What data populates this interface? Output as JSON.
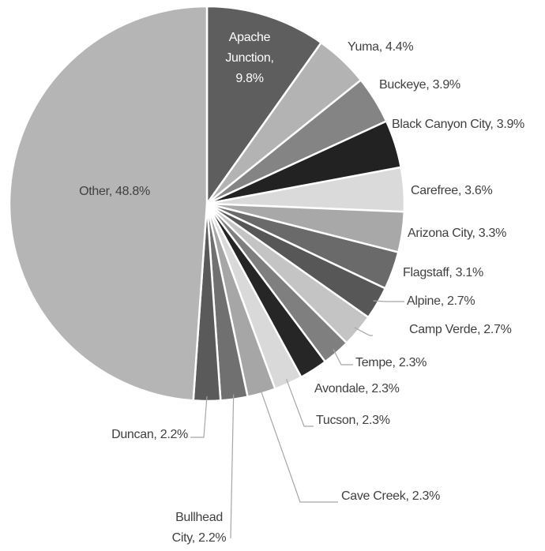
{
  "chart_data": {
    "type": "pie",
    "categories": [
      "Apache Junction",
      "Yuma",
      "Buckeye",
      "Black Canyon City",
      "Carefree",
      "Arizona City",
      "Flagstaff",
      "Alpine",
      "Camp Verde",
      "Tempe",
      "Avondale",
      "Tucson",
      "Cave Creek",
      "Bullhead City",
      "Duncan",
      "Other"
    ],
    "values": [
      9.8,
      4.4,
      3.9,
      3.9,
      3.6,
      3.3,
      3.1,
      2.7,
      2.7,
      2.3,
      2.3,
      2.3,
      2.3,
      2.2,
      2.2,
      48.8
    ],
    "value_labels": [
      "9.8%",
      "4.4%",
      "3.9%",
      "3.9%",
      "3.6%",
      "3.3%",
      "3.1%",
      "2.7%",
      "2.7%",
      "2.3%",
      "2.3%",
      "2.3%",
      "2.3%",
      "2.2%",
      "2.2%",
      "48.8%"
    ],
    "colors": [
      "#5e5e5e",
      "#b3b3b3",
      "#848484",
      "#222222",
      "#dadada",
      "#a8a8a8",
      "#6a6a6a",
      "#575757",
      "#c4c4c4",
      "#7f7f7f",
      "#262626",
      "#d9d9d9",
      "#a6a6a6",
      "#707070",
      "#5a5a5a",
      "#b5b5b5"
    ]
  }
}
